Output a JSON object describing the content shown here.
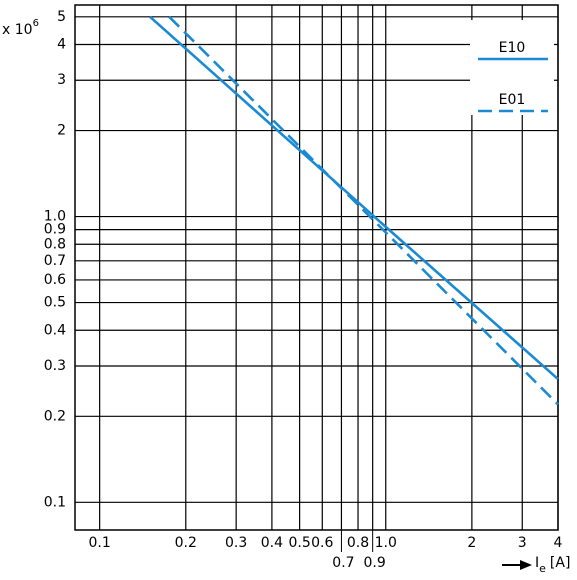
{
  "chart_data": {
    "type": "line",
    "y_scale_note": {
      "base": "x 10",
      "exponent": "6"
    },
    "x_label": {
      "main": "I",
      "sub": "e",
      "unit": "[A]"
    },
    "xscale": "log",
    "yscale": "log",
    "grid": true,
    "legend": "upper right",
    "xlim": [
      0.082,
      4
    ],
    "ylim": [
      0.08,
      5.5
    ],
    "xticks": [
      0.1,
      0.2,
      0.3,
      0.4,
      0.5,
      0.6,
      0.7,
      0.8,
      0.9,
      {
        "value": 1,
        "label": "1.0"
      },
      2,
      3,
      4
    ],
    "yticks": [
      0.1,
      0.2,
      0.3,
      0.4,
      0.5,
      0.6,
      0.7,
      0.8,
      0.9,
      {
        "value": 1,
        "label": "1.0"
      },
      2,
      3,
      4,
      5
    ],
    "series": [
      {
        "name": "E10",
        "color": "#1a8ad4",
        "dash": false,
        "x": [
          0.15,
          1,
          4
        ],
        "values": [
          5,
          0.92,
          0.27
        ]
      },
      {
        "name": "E01",
        "color": "#1a8ad4",
        "dash": true,
        "x": [
          0.175,
          1,
          4
        ],
        "values": [
          5,
          0.88,
          0.22
        ]
      }
    ]
  }
}
